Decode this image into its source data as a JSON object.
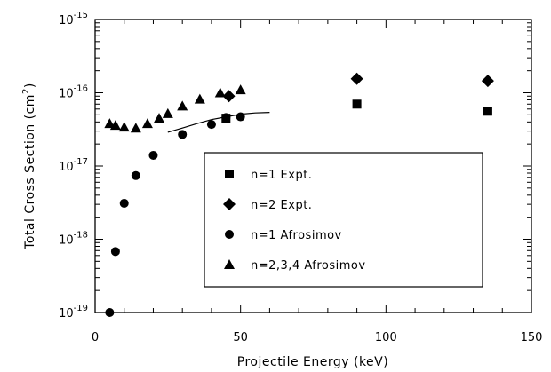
{
  "chart_data": {
    "type": "scatter",
    "title": "",
    "xlabel": "Projectile Energy (keV)",
    "ylabel": "Total Cross Section (cm²)",
    "ylabel_parts": {
      "main": "Total Cross Section (cm",
      "sup": "2",
      "close": ")"
    },
    "xlim": [
      0,
      150
    ],
    "ylim": [
      1e-19,
      1e-15
    ],
    "yscale": "log",
    "grid": false,
    "legend_position": "center-right",
    "x_ticks": [
      {
        "value": 0,
        "label": "0"
      },
      {
        "value": 50,
        "label": "50"
      },
      {
        "value": 100,
        "label": "100"
      },
      {
        "value": 150,
        "label": "150"
      }
    ],
    "y_ticks": [
      {
        "value": 1e-19,
        "base": "10",
        "exp": "-19"
      },
      {
        "value": 1e-18,
        "base": "10",
        "exp": "-18"
      },
      {
        "value": 1e-17,
        "base": "10",
        "exp": "-17"
      },
      {
        "value": 1e-16,
        "base": "10",
        "exp": "-16"
      },
      {
        "value": 1e-15,
        "base": "10",
        "exp": "-15"
      }
    ],
    "series": [
      {
        "name": "n=1 Expt.",
        "marker": "square",
        "points": [
          [
            45,
            4.5e-17
          ],
          [
            90,
            7e-17
          ],
          [
            135,
            5.6e-17
          ]
        ]
      },
      {
        "name": "n=2 Expt.",
        "marker": "diamond",
        "points": [
          [
            46,
            9e-17
          ],
          [
            90,
            1.55e-16
          ],
          [
            135,
            1.45e-16
          ]
        ]
      },
      {
        "name": "n=1 Afrosimov",
        "marker": "circle",
        "points": [
          [
            5,
            1e-19
          ],
          [
            7,
            6.8e-19
          ],
          [
            10,
            3.1e-18
          ],
          [
            14,
            7.4e-18
          ],
          [
            20,
            1.4e-17
          ],
          [
            30,
            2.7e-17
          ],
          [
            40,
            3.7e-17
          ],
          [
            45,
            4.6e-17
          ],
          [
            50,
            4.7e-17
          ]
        ]
      },
      {
        "name": "n=2,3,4 Afrosimov",
        "marker": "triangle",
        "points": [
          [
            5,
            3.8e-17
          ],
          [
            7,
            3.6e-17
          ],
          [
            10,
            3.4e-17
          ],
          [
            14,
            3.3e-17
          ],
          [
            18,
            3.8e-17
          ],
          [
            22,
            4.5e-17
          ],
          [
            25,
            5.2e-17
          ],
          [
            30,
            6.6e-17
          ],
          [
            36,
            8.2e-17
          ],
          [
            43,
            1e-16
          ],
          [
            50,
            1.1e-16
          ]
        ]
      }
    ],
    "curve": {
      "points": [
        [
          25,
          2.9e-17
        ],
        [
          30,
          3.3e-17
        ],
        [
          35,
          3.8e-17
        ],
        [
          40,
          4.3e-17
        ],
        [
          45,
          4.7e-17
        ],
        [
          50,
          5.1e-17
        ],
        [
          55,
          5.3e-17
        ],
        [
          60,
          5.4e-17
        ]
      ]
    }
  }
}
